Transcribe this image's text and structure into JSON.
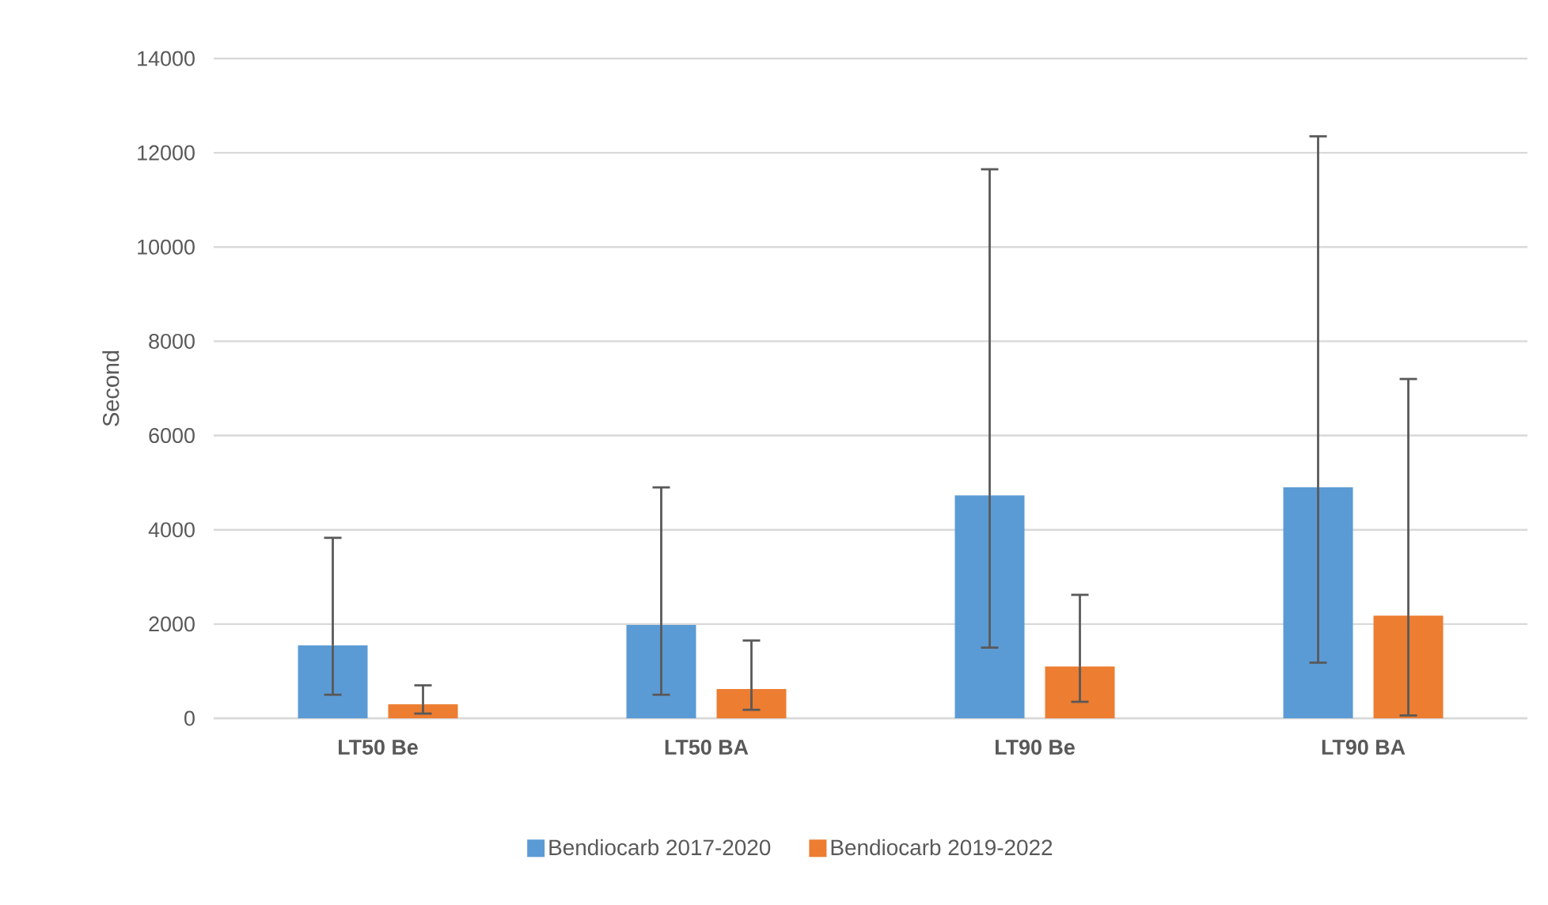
{
  "chart_data": {
    "type": "bar",
    "ylabel": "Second",
    "categories": [
      "LT50 Be",
      "LT50 BA",
      "LT90 Be",
      "LT90 BA"
    ],
    "series": [
      {
        "name": "Bendiocarb 2017-2020",
        "color": "#5b9bd5",
        "values": [
          1550,
          1980,
          4730,
          4900
        ],
        "errors": [
          [
            500,
            3830
          ],
          [
            500,
            4900
          ],
          [
            1500,
            11650
          ],
          [
            1180,
            12350
          ]
        ]
      },
      {
        "name": "Bendiocarb 2019-2022",
        "color": "#ed7d31",
        "values": [
          300,
          620,
          1100,
          2180
        ],
        "errors": [
          [
            100,
            700
          ],
          [
            180,
            1650
          ],
          [
            350,
            2620
          ],
          [
            60,
            7200
          ]
        ]
      }
    ],
    "ylim": [
      0,
      14000
    ],
    "yticks": [
      0,
      2000,
      4000,
      6000,
      8000,
      10000,
      12000,
      14000
    ],
    "grid": "y",
    "legend": "bottom"
  }
}
